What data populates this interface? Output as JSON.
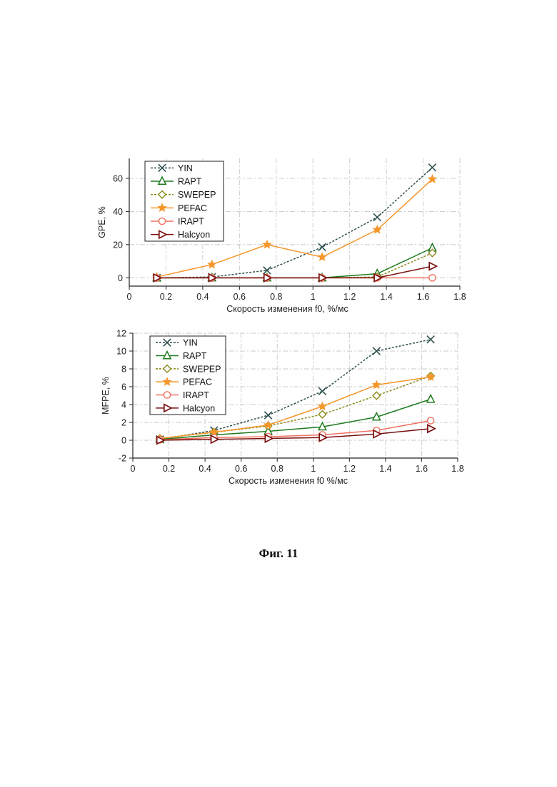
{
  "caption": "Фиг. 11",
  "colors": {
    "YIN": "#2f4f4f",
    "RAPT": "#1e7a1e",
    "SWEPEP": "#8a8a1a",
    "PEFAC": "#f5962a",
    "IRAPT": "#f07060",
    "Halcyon": "#7a1010"
  },
  "chart_data": [
    {
      "type": "line",
      "title": "",
      "xlabel": "Скорость изменения f0, %/мс",
      "ylabel": "GPE, %",
      "xlim": [
        0,
        1.8
      ],
      "ylim": [
        -5,
        72
      ],
      "xticks": [
        0,
        0.2,
        0.4,
        0.6,
        0.8,
        1,
        1.2,
        1.4,
        1.6,
        1.8
      ],
      "xtick_labels": [
        "0",
        "0.2",
        "0.4",
        "0.6",
        "0.8",
        "1",
        "1.2",
        "1.4",
        "1.6",
        "1.8"
      ],
      "yticks": [
        0,
        20,
        40,
        60
      ],
      "ytick_labels": [
        "0",
        "20",
        "40",
        "60"
      ],
      "grid": true,
      "legend_position": "top-left",
      "x": [
        0.15,
        0.45,
        0.75,
        1.05,
        1.35,
        1.65
      ],
      "series": [
        {
          "name": "YIN",
          "values": [
            0,
            0.5,
            4.5,
            18.5,
            36.5,
            66.5
          ]
        },
        {
          "name": "RAPT",
          "values": [
            0,
            0,
            0,
            0,
            2.5,
            18
          ]
        },
        {
          "name": "SWEPEP",
          "values": [
            0,
            0,
            0,
            0,
            0.5,
            15
          ]
        },
        {
          "name": "PEFAC",
          "values": [
            0.5,
            8,
            20,
            12.5,
            29,
            59.5
          ]
        },
        {
          "name": "IRAPT",
          "values": [
            0,
            0,
            0,
            0,
            0,
            0
          ]
        },
        {
          "name": "Halcyon",
          "values": [
            0,
            0,
            0,
            0,
            0,
            7
          ]
        }
      ]
    },
    {
      "type": "line",
      "title": "",
      "xlabel": "Скорость изменения f0 %/мс",
      "ylabel": "MFPE, %",
      "xlim": [
        0,
        1.8
      ],
      "ylim": [
        -2,
        12
      ],
      "xticks": [
        0,
        0.2,
        0.4,
        0.6,
        0.8,
        1,
        1.2,
        1.4,
        1.6,
        1.8
      ],
      "xtick_labels": [
        "0",
        "0.2",
        "0.4",
        "0.6",
        "0.8",
        "1",
        "1.2",
        "1.4",
        "1.6",
        "1.8"
      ],
      "yticks": [
        -2,
        0,
        2,
        4,
        6,
        8,
        10,
        12
      ],
      "ytick_labels": [
        "-2",
        "0",
        "2",
        "4",
        "6",
        "8",
        "10",
        "12"
      ],
      "grid": true,
      "legend_position": "top-left",
      "x": [
        0.15,
        0.45,
        0.75,
        1.05,
        1.35,
        1.65
      ],
      "series": [
        {
          "name": "YIN",
          "values": [
            0.1,
            1.1,
            2.8,
            5.5,
            10,
            11.3
          ]
        },
        {
          "name": "RAPT",
          "values": [
            0.1,
            0.6,
            1.0,
            1.5,
            2.6,
            4.6
          ]
        },
        {
          "name": "SWEPEP",
          "values": [
            0.2,
            0.9,
            1.6,
            2.9,
            5.0,
            7.2
          ]
        },
        {
          "name": "PEFAC",
          "values": [
            0.2,
            0.9,
            1.7,
            3.8,
            6.2,
            7.1
          ]
        },
        {
          "name": "IRAPT",
          "values": [
            0.05,
            0.3,
            0.4,
            0.6,
            1.1,
            2.2
          ]
        },
        {
          "name": "Halcyon",
          "values": [
            0,
            0.1,
            0.2,
            0.3,
            0.7,
            1.3
          ]
        }
      ]
    }
  ]
}
